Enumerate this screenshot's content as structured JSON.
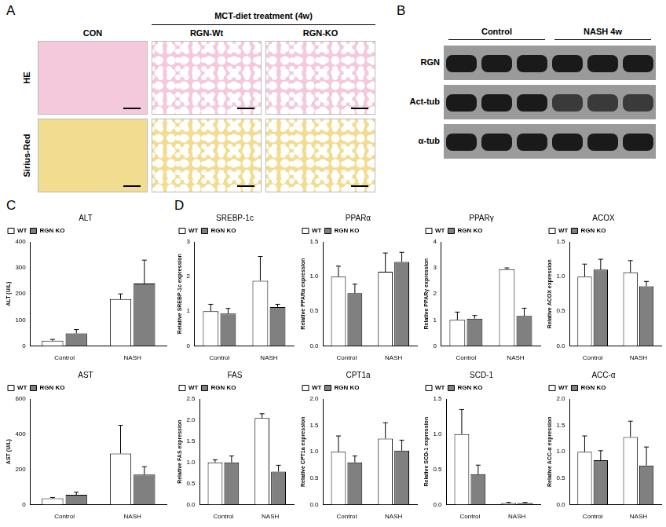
{
  "panel_a": {
    "label": "A",
    "header": "MCT-diet treatment (4w)",
    "columns": [
      "CON",
      "RGN-Wt",
      "RGN-KO"
    ],
    "rows": [
      "HE",
      "Sirius-Red"
    ]
  },
  "panel_b": {
    "label": "B",
    "groups": [
      "Control",
      "NASH 4w"
    ],
    "rows": [
      "RGN",
      "Act-tub",
      "α-tub"
    ]
  },
  "panel_c": {
    "label": "C"
  },
  "panel_d": {
    "label": "D"
  },
  "chart_data": [
    {
      "type": "bar",
      "title": "ALT",
      "y_label": "ALT (U/L)",
      "categories": [
        "Control",
        "NASH"
      ],
      "legend": "top-left",
      "series": [
        {
          "name": "WT",
          "color": "#ffffff",
          "values": [
            20,
            180
          ],
          "errors": [
            5,
            20
          ]
        },
        {
          "name": "RGN KO",
          "color": "#808080",
          "values": [
            48,
            240
          ],
          "errors": [
            15,
            90
          ]
        }
      ],
      "ylim": [
        0,
        400
      ],
      "yticks": [
        0,
        100,
        200,
        300,
        400
      ]
    },
    {
      "type": "bar",
      "title": "AST",
      "y_label": "AST (U/L)",
      "categories": [
        "Control",
        "NASH"
      ],
      "legend": "top-left",
      "series": [
        {
          "name": "WT",
          "color": "#ffffff",
          "values": [
            35,
            290
          ],
          "errors": [
            5,
            160
          ]
        },
        {
          "name": "RGN KO",
          "color": "#808080",
          "values": [
            55,
            170
          ],
          "errors": [
            15,
            45
          ]
        }
      ],
      "ylim": [
        0,
        600
      ],
      "yticks": [
        0,
        200,
        400,
        600
      ]
    },
    {
      "type": "bar",
      "title": "SREBP-1c",
      "y_label": "Relative SREBP-1c expression",
      "categories": [
        "Control",
        "NASH"
      ],
      "legend": "top-left",
      "series": [
        {
          "name": "WT",
          "color": "#ffffff",
          "values": [
            1.0,
            1.88
          ],
          "errors": [
            0.2,
            0.7
          ]
        },
        {
          "name": "RGN KO",
          "color": "#808080",
          "values": [
            0.93,
            1.12
          ],
          "errors": [
            0.15,
            0.08
          ]
        }
      ],
      "ylim": [
        0,
        3
      ],
      "yticks": [
        0,
        1,
        2,
        3
      ]
    },
    {
      "type": "bar",
      "title": "PPARα",
      "y_label": "Relative PPARα expression",
      "categories": [
        "Control",
        "NASH"
      ],
      "legend": "top-left",
      "series": [
        {
          "name": "WT",
          "color": "#ffffff",
          "values": [
            1.0,
            1.07
          ],
          "errors": [
            0.15,
            0.27
          ]
        },
        {
          "name": "RGN KO",
          "color": "#808080",
          "values": [
            0.76,
            1.21
          ],
          "errors": [
            0.13,
            0.14
          ]
        }
      ],
      "ylim": [
        0,
        1.5
      ],
      "yticks": [
        {
          "value": 0,
          "label": "0.0"
        },
        0.5,
        {
          "value": 1,
          "label": "1.0"
        },
        1.5
      ]
    },
    {
      "type": "bar",
      "title": "PPARγ",
      "y_label": "Relative PPARγ expression",
      "categories": [
        "Control",
        "NASH"
      ],
      "legend": "top-left",
      "series": [
        {
          "name": "WT",
          "color": "#ffffff",
          "values": [
            1.0,
            2.95
          ],
          "errors": [
            0.3,
            0.05
          ]
        },
        {
          "name": "RGN KO",
          "color": "#808080",
          "values": [
            1.05,
            1.15
          ],
          "errors": [
            0.12,
            0.3
          ]
        }
      ],
      "ylim": [
        0,
        4
      ],
      "yticks": [
        0,
        1,
        2,
        3,
        4
      ]
    },
    {
      "type": "bar",
      "title": "ACOX",
      "y_label": "Relative ACOX expression",
      "categories": [
        "Control",
        "NASH"
      ],
      "legend": "top-left",
      "series": [
        {
          "name": "WT",
          "color": "#ffffff",
          "values": [
            1.0,
            1.06
          ],
          "errors": [
            0.18,
            0.17
          ]
        },
        {
          "name": "RGN KO",
          "color": "#808080",
          "values": [
            1.1,
            0.86
          ],
          "errors": [
            0.15,
            0.07
          ]
        }
      ],
      "ylim": [
        0,
        1.5
      ],
      "yticks": [
        {
          "value": 0,
          "label": "0.0"
        },
        0.5,
        {
          "value": 1,
          "label": "1.0"
        },
        1.5
      ]
    },
    {
      "type": "bar",
      "title": "FAS",
      "y_label": "Relative FAS expression",
      "categories": [
        "Control",
        "NASH"
      ],
      "legend": "top-left",
      "series": [
        {
          "name": "WT",
          "color": "#ffffff",
          "values": [
            1.0,
            2.05
          ],
          "errors": [
            0.06,
            0.1
          ]
        },
        {
          "name": "RGN KO",
          "color": "#808080",
          "values": [
            1.0,
            0.78
          ],
          "errors": [
            0.15,
            0.15
          ]
        }
      ],
      "ylim": [
        0,
        2.5
      ],
      "yticks": [
        {
          "value": 0,
          "label": "0.0"
        },
        0.5,
        {
          "value": 1,
          "label": "1.0"
        },
        1.5,
        {
          "value": 2,
          "label": "2.0"
        },
        2.5
      ]
    },
    {
      "type": "bar",
      "title": "CPT1a",
      "y_label": "Relative CPT1a expression",
      "categories": [
        "Control",
        "NASH"
      ],
      "legend": "top-left",
      "series": [
        {
          "name": "WT",
          "color": "#ffffff",
          "values": [
            1.0,
            1.25
          ],
          "errors": [
            0.3,
            0.3
          ]
        },
        {
          "name": "RGN KO",
          "color": "#808080",
          "values": [
            0.8,
            1.02
          ],
          "errors": [
            0.12,
            0.2
          ]
        }
      ],
      "ylim": [
        0,
        2
      ],
      "yticks": [
        {
          "value": 0,
          "label": "0.0"
        },
        0.5,
        {
          "value": 1,
          "label": "1.0"
        },
        1.5,
        {
          "value": 2,
          "label": "2.0"
        }
      ]
    },
    {
      "type": "bar",
      "title": "SCD-1",
      "y_label": "Relative SCD-1 expression",
      "categories": [
        "Control",
        "NASH"
      ],
      "legend": "top-left",
      "series": [
        {
          "name": "WT",
          "color": "#ffffff",
          "values": [
            1.0,
            0.02
          ],
          "errors": [
            0.35,
            0.01
          ]
        },
        {
          "name": "RGN KO",
          "color": "#808080",
          "values": [
            0.43,
            0.02
          ],
          "errors": [
            0.13,
            0.01
          ]
        }
      ],
      "ylim": [
        0,
        1.5
      ],
      "yticks": [
        {
          "value": 0,
          "label": "0.0"
        },
        0.5,
        {
          "value": 1,
          "label": "1.0"
        },
        1.5
      ]
    },
    {
      "type": "bar",
      "title": "ACC-α",
      "y_label": "Relative ACC-α expression",
      "categories": [
        "Control",
        "NASH"
      ],
      "legend": "top-left",
      "series": [
        {
          "name": "WT",
          "color": "#ffffff",
          "values": [
            1.0,
            1.28
          ],
          "errors": [
            0.3,
            0.3
          ]
        },
        {
          "name": "RGN KO",
          "color": "#808080",
          "values": [
            0.84,
            0.74
          ],
          "errors": [
            0.18,
            0.35
          ]
        }
      ],
      "ylim": [
        0,
        2
      ],
      "yticks": [
        {
          "value": 0,
          "label": "0.0"
        },
        0.5,
        {
          "value": 1,
          "label": "1.0"
        },
        1.5,
        {
          "value": 2,
          "label": "2.0"
        }
      ]
    }
  ]
}
